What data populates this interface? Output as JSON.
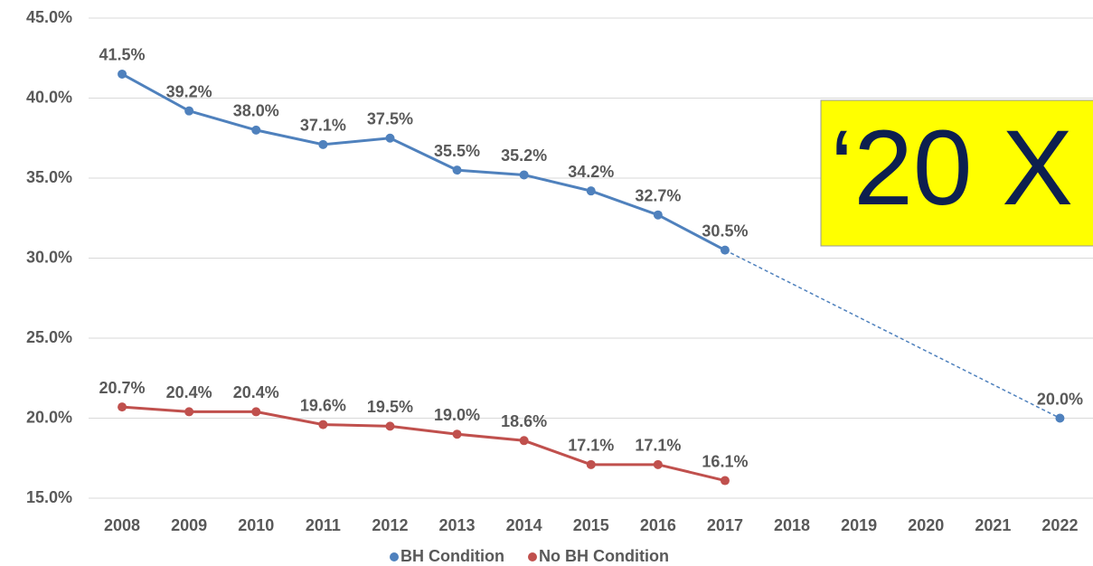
{
  "chart_data": {
    "type": "line",
    "categories": [
      "2008",
      "2009",
      "2010",
      "2011",
      "2012",
      "2013",
      "2014",
      "2015",
      "2016",
      "2017",
      "2018",
      "2019",
      "2020",
      "2021",
      "2022"
    ],
    "series": [
      {
        "name": "BH Condition",
        "color": "#4f81bd",
        "dashed_gap": true,
        "values": [
          41.5,
          39.2,
          38.0,
          37.1,
          37.5,
          35.5,
          35.2,
          34.2,
          32.7,
          30.5,
          null,
          null,
          null,
          null,
          20.0
        ],
        "value_labels": [
          "41.5%",
          "39.2%",
          "38.0%",
          "37.1%",
          "37.5%",
          "35.5%",
          "35.2%",
          "34.2%",
          "32.7%",
          "30.5%",
          null,
          null,
          null,
          null,
          "20.0%"
        ]
      },
      {
        "name": "No BH Condition",
        "color": "#c0504d",
        "values": [
          20.7,
          20.4,
          20.4,
          19.6,
          19.5,
          19.0,
          18.6,
          17.1,
          17.1,
          16.1,
          null,
          null,
          null,
          null,
          null
        ],
        "value_labels": [
          "20.7%",
          "20.4%",
          "20.4%",
          "19.6%",
          "19.5%",
          "19.0%",
          "18.6%",
          "17.1%",
          "17.1%",
          "16.1%",
          null,
          null,
          null,
          null,
          null
        ]
      }
    ],
    "ylim": [
      15,
      45
    ],
    "yticks": [
      {
        "value": 15,
        "label": "15.0%"
      },
      {
        "value": 20,
        "label": "20.0%"
      },
      {
        "value": 25,
        "label": "25.0%"
      },
      {
        "value": 30,
        "label": "30.0%"
      },
      {
        "value": 35,
        "label": "35.0%"
      },
      {
        "value": 40,
        "label": "40.0%"
      },
      {
        "value": 45,
        "label": "45.0%"
      }
    ],
    "grid": true,
    "legend": "bottom",
    "annotation": "‘20 X"
  }
}
